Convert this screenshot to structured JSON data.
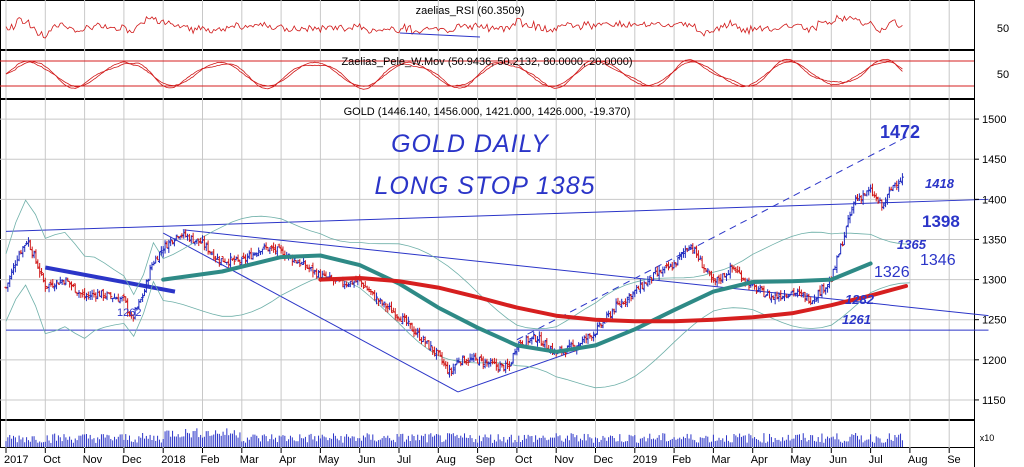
{
  "colors": {
    "background": "#ffffff",
    "grid": "#c8c8c8",
    "frame": "#000000",
    "candle_up": "#1f2bbf",
    "candle_down": "#d01818",
    "annotation": "#2b35c8",
    "ma_fast": "#d61f1f",
    "ma_slow": "#2e8a86",
    "bollinger": "#6fb0a9",
    "volume": "#2b35c8"
  },
  "panels": {
    "rsi": {
      "title": "zaelias_RSI (60.3509)",
      "tick_label": "50"
    },
    "pele": {
      "title": "Zaelias_Pele_W.Mov (50.9436, 50.2132, 80.0000, 20.0000)",
      "tick_label": "50"
    },
    "price": {
      "title": "GOLD (1446.140, 1456.000, 1421.000, 1426.000, -19.370)"
    },
    "volume": {
      "multiplier_label": "x10"
    }
  },
  "annotations": {
    "headline_1": "GOLD DAILY",
    "headline_2": "LONG STOP 1385",
    "level_1472": "1472",
    "level_1418": "1418",
    "level_1398": "1398",
    "level_1365": "1365",
    "level_1346": "1346",
    "level_1326": "1326",
    "level_1282": "1282",
    "level_1261": "1261",
    "level_1262": "1262"
  },
  "chart_data": {
    "type": "candlestick",
    "instrument": "GOLD",
    "timeframe": "daily",
    "x_labels": [
      "2017",
      "Oct",
      "Nov",
      "Dec",
      "2018",
      "Feb",
      "Mar",
      "Apr",
      "May",
      "Jun",
      "Jul",
      "Aug",
      "Sep",
      "Oct",
      "Nov",
      "Dec",
      "2019",
      "Feb",
      "Mar",
      "Apr",
      "May",
      "Jun",
      "Jul",
      "Aug",
      "Se"
    ],
    "y_ticks": [
      1150,
      1200,
      1250,
      1300,
      1350,
      1400,
      1450,
      1500
    ],
    "ylim": [
      1125,
      1525
    ],
    "last_ohlc": {
      "open": 1446.14,
      "high": 1456.0,
      "low": 1421.0,
      "close": 1426.0,
      "change": -19.37
    },
    "close_path": [
      {
        "x": 0,
        "y": 1290
      },
      {
        "x": 0.3,
        "y": 1330
      },
      {
        "x": 0.55,
        "y": 1350
      },
      {
        "x": 1.0,
        "y": 1292
      },
      {
        "x": 1.5,
        "y": 1300
      },
      {
        "x": 2.0,
        "y": 1278
      },
      {
        "x": 2.3,
        "y": 1283
      },
      {
        "x": 3.0,
        "y": 1275
      },
      {
        "x": 3.2,
        "y": 1250
      },
      {
        "x": 3.5,
        "y": 1282
      },
      {
        "x": 3.7,
        "y": 1318
      },
      {
        "x": 4.0,
        "y": 1340
      },
      {
        "x": 4.4,
        "y": 1358
      },
      {
        "x": 5.0,
        "y": 1345
      },
      {
        "x": 5.4,
        "y": 1325
      },
      {
        "x": 6.0,
        "y": 1322
      },
      {
        "x": 6.5,
        "y": 1340
      },
      {
        "x": 7.0,
        "y": 1335
      },
      {
        "x": 7.5,
        "y": 1320
      },
      {
        "x": 8.0,
        "y": 1305
      },
      {
        "x": 8.5,
        "y": 1295
      },
      {
        "x": 9.0,
        "y": 1298
      },
      {
        "x": 9.5,
        "y": 1272
      },
      {
        "x": 10.0,
        "y": 1255
      },
      {
        "x": 10.5,
        "y": 1230
      },
      {
        "x": 11.0,
        "y": 1205
      },
      {
        "x": 11.3,
        "y": 1183
      },
      {
        "x": 11.5,
        "y": 1200
      },
      {
        "x": 12.0,
        "y": 1200
      },
      {
        "x": 12.5,
        "y": 1192
      },
      {
        "x": 12.8,
        "y": 1190
      },
      {
        "x": 13.0,
        "y": 1220
      },
      {
        "x": 13.5,
        "y": 1228
      },
      {
        "x": 14.0,
        "y": 1208
      },
      {
        "x": 14.5,
        "y": 1218
      },
      {
        "x": 15.0,
        "y": 1235
      },
      {
        "x": 15.5,
        "y": 1265
      },
      {
        "x": 16.0,
        "y": 1285
      },
      {
        "x": 16.5,
        "y": 1305
      },
      {
        "x": 17.0,
        "y": 1318
      },
      {
        "x": 17.4,
        "y": 1345
      },
      {
        "x": 18.0,
        "y": 1295
      },
      {
        "x": 18.5,
        "y": 1315
      },
      {
        "x": 19.0,
        "y": 1290
      },
      {
        "x": 19.5,
        "y": 1278
      },
      {
        "x": 20.0,
        "y": 1285
      },
      {
        "x": 20.5,
        "y": 1275
      },
      {
        "x": 21.0,
        "y": 1300
      },
      {
        "x": 21.3,
        "y": 1350
      },
      {
        "x": 21.6,
        "y": 1400
      },
      {
        "x": 22.0,
        "y": 1410
      },
      {
        "x": 22.3,
        "y": 1390
      },
      {
        "x": 22.6,
        "y": 1420
      },
      {
        "x": 22.8,
        "y": 1426
      }
    ],
    "moving_averages": [
      {
        "color": "#2e8a86",
        "values": [
          {
            "x": 4.0,
            "y": 1300
          },
          {
            "x": 5.5,
            "y": 1310
          },
          {
            "x": 7.0,
            "y": 1328
          },
          {
            "x": 8.0,
            "y": 1330
          },
          {
            "x": 9.0,
            "y": 1318
          },
          {
            "x": 10.0,
            "y": 1295
          },
          {
            "x": 11.0,
            "y": 1265
          },
          {
            "x": 12.0,
            "y": 1240
          },
          {
            "x": 13.0,
            "y": 1218
          },
          {
            "x": 14.0,
            "y": 1210
          },
          {
            "x": 15.0,
            "y": 1218
          },
          {
            "x": 16.0,
            "y": 1238
          },
          {
            "x": 17.0,
            "y": 1262
          },
          {
            "x": 18.0,
            "y": 1285
          },
          {
            "x": 19.0,
            "y": 1297
          },
          {
            "x": 20.0,
            "y": 1298
          },
          {
            "x": 21.0,
            "y": 1300
          },
          {
            "x": 22.0,
            "y": 1320
          }
        ]
      },
      {
        "color": "#d61f1f",
        "values": [
          {
            "x": 8.0,
            "y": 1300
          },
          {
            "x": 9.0,
            "y": 1302
          },
          {
            "x": 10.0,
            "y": 1298
          },
          {
            "x": 11.0,
            "y": 1290
          },
          {
            "x": 12.0,
            "y": 1278
          },
          {
            "x": 13.0,
            "y": 1265
          },
          {
            "x": 14.0,
            "y": 1255
          },
          {
            "x": 15.0,
            "y": 1250
          },
          {
            "x": 16.0,
            "y": 1248
          },
          {
            "x": 17.0,
            "y": 1248
          },
          {
            "x": 18.0,
            "y": 1250
          },
          {
            "x": 19.0,
            "y": 1253
          },
          {
            "x": 20.0,
            "y": 1258
          },
          {
            "x": 21.0,
            "y": 1268
          },
          {
            "x": 22.0,
            "y": 1280
          },
          {
            "x": 22.9,
            "y": 1292
          }
        ]
      }
    ],
    "trendlines": [
      {
        "x1": 0.0,
        "y1": 1360,
        "x2": 25.0,
        "y2": 1400,
        "style": "solid"
      },
      {
        "x1": 0.0,
        "y1": 1237,
        "x2": 25.0,
        "y2": 1237,
        "style": "solid"
      },
      {
        "x1": 13.0,
        "y1": 1225,
        "x2": 23.0,
        "y2": 1480,
        "style": "dashed"
      },
      {
        "x1": 4.5,
        "y1": 1362,
        "x2": 25.0,
        "y2": 1255,
        "style": "solid"
      },
      {
        "x1": 1.0,
        "y1": 1315,
        "x2": 4.3,
        "y2": 1285,
        "style": "thick"
      },
      {
        "x1": 4.0,
        "y1": 1358,
        "x2": 11.5,
        "y2": 1160,
        "style": "solid"
      },
      {
        "x1": 11.5,
        "y1": 1160,
        "x2": 15.0,
        "y2": 1220,
        "style": "solid"
      }
    ]
  }
}
